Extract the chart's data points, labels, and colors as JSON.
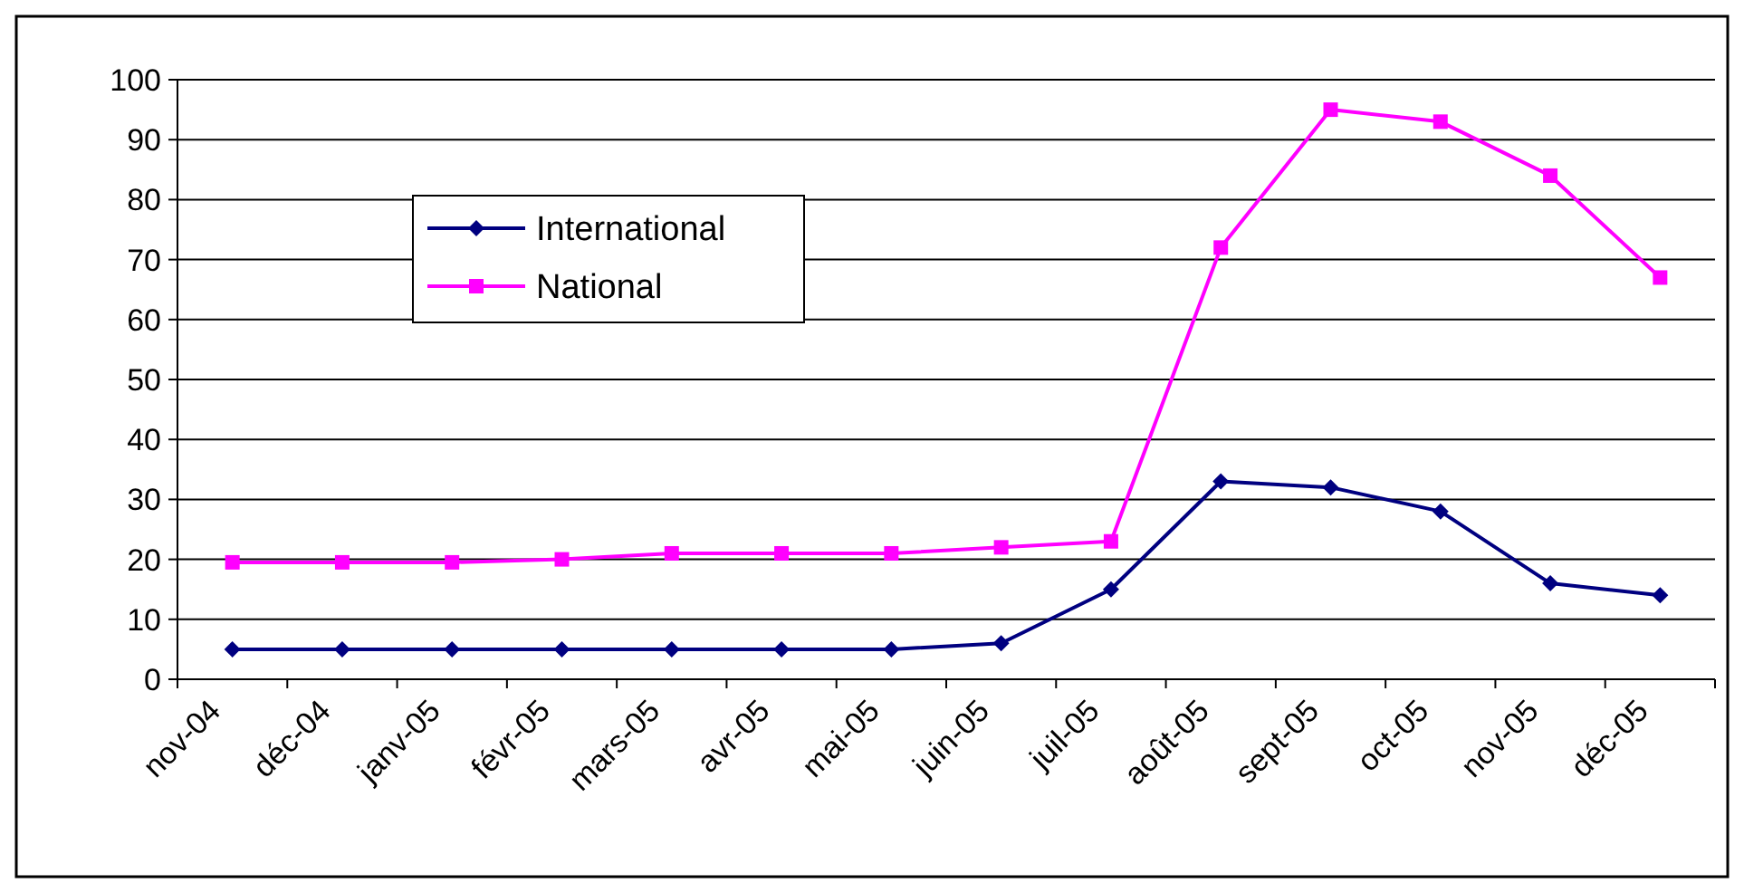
{
  "chart_data": {
    "type": "line",
    "categories": [
      "nov-04",
      "déc-04",
      "janv-05",
      "févr-05",
      "mars-05",
      "avr-05",
      "mai-05",
      "juin-05",
      "juil-05",
      "août-05",
      "sept-05",
      "oct-05",
      "nov-05",
      "déc-05"
    ],
    "series": [
      {
        "name": "International",
        "color": "#000080",
        "marker": "diamond",
        "values": [
          5,
          5,
          5,
          5,
          5,
          5,
          5,
          6,
          15,
          33,
          32,
          28,
          16,
          14
        ]
      },
      {
        "name": "National",
        "color": "#ff00ff",
        "marker": "square",
        "values": [
          19.5,
          19.5,
          19.5,
          20,
          21,
          21,
          21,
          22,
          23,
          72,
          95,
          93,
          84,
          67
        ]
      }
    ],
    "ylim": [
      0,
      100
    ],
    "yticks": [
      0,
      10,
      20,
      30,
      40,
      50,
      60,
      70,
      80,
      90,
      100
    ],
    "grid": "y",
    "legend": "top left",
    "line_style": "solid"
  }
}
